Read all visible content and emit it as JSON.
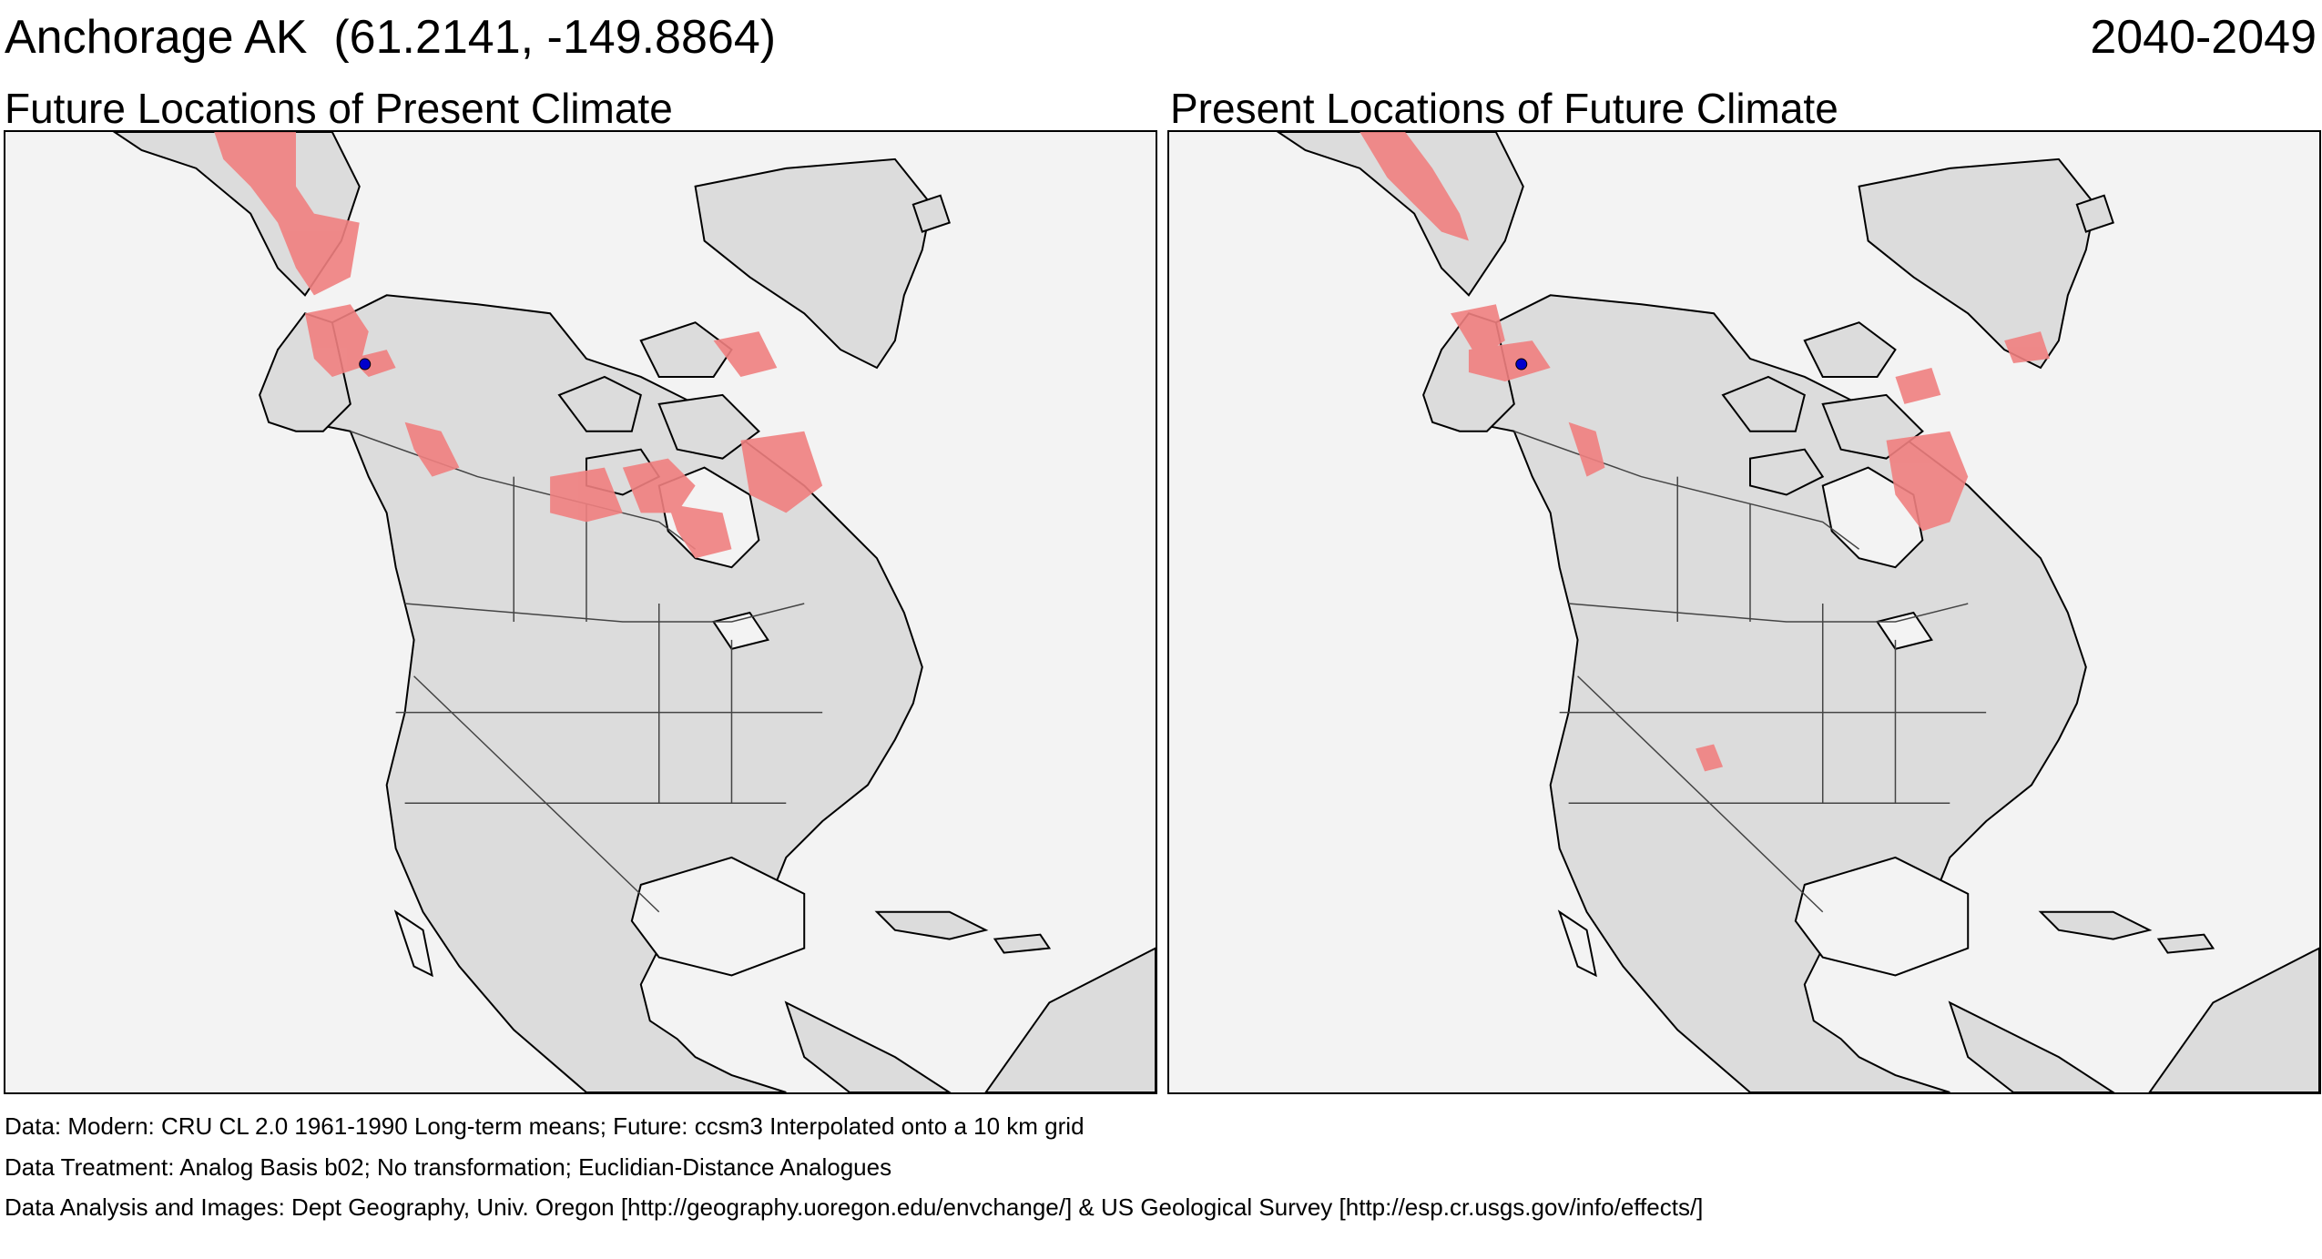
{
  "header": {
    "location": "Anchorage AK  (61.2141, -149.8864)",
    "period": "2040-2049"
  },
  "maps": {
    "left": {
      "title": "Future Locations of Present Climate"
    },
    "right": {
      "title": "Present Locations of Future Climate"
    }
  },
  "footer": {
    "data": "Data:  Modern: CRU CL 2.0 1961-1990 Long-term means; Future: ccsm3 Interpolated onto a 10 km grid",
    "treatment": "Data Treatment:  Analog Basis b02; No transformation; Euclidian-Distance Analogues",
    "analysis": "Data Analysis and Images:  Dept Geography, Univ. Oregon [http://geography.uoregon.edu/envchange/] & US Geological Survey [http://esp.cr.usgs.gov/info/effects/]"
  },
  "colors": {
    "analog_region": "#f08080",
    "site_marker": "#0000cc",
    "land": "#dcdcdc",
    "water": "#f3f3f3"
  }
}
